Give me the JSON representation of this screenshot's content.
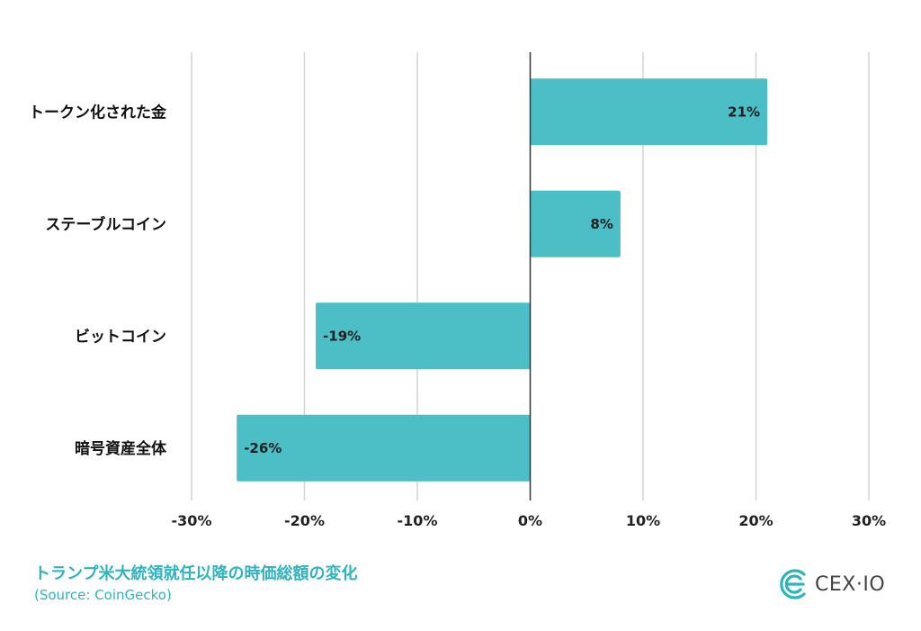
{
  "chart_data": {
    "type": "bar",
    "orientation": "horizontal",
    "categories": [
      "トークン化された金",
      "ステーブルコイン",
      "ビットコイン",
      "暗号資産全体"
    ],
    "values": [
      21,
      8,
      -19,
      -26
    ],
    "data_labels": [
      "21%",
      "8%",
      "-19%",
      "-26%"
    ],
    "xlim": [
      -30,
      30
    ],
    "x_ticks": [
      -30,
      -20,
      -10,
      0,
      10,
      20,
      30
    ],
    "x_tick_labels": [
      "-30%",
      "-20%",
      "-10%",
      "0%",
      "10%",
      "20%",
      "30%"
    ],
    "grid": true,
    "legend": "none",
    "bar_color": "#4bbec6"
  },
  "caption": {
    "title": "トランプ米大統領就任以降の時価総額の変化",
    "source": "(Source: CoinGecko)"
  },
  "logo": {
    "text": "CEX·IO",
    "icon": "cex-logo-icon",
    "color": "#2fb3bd"
  }
}
